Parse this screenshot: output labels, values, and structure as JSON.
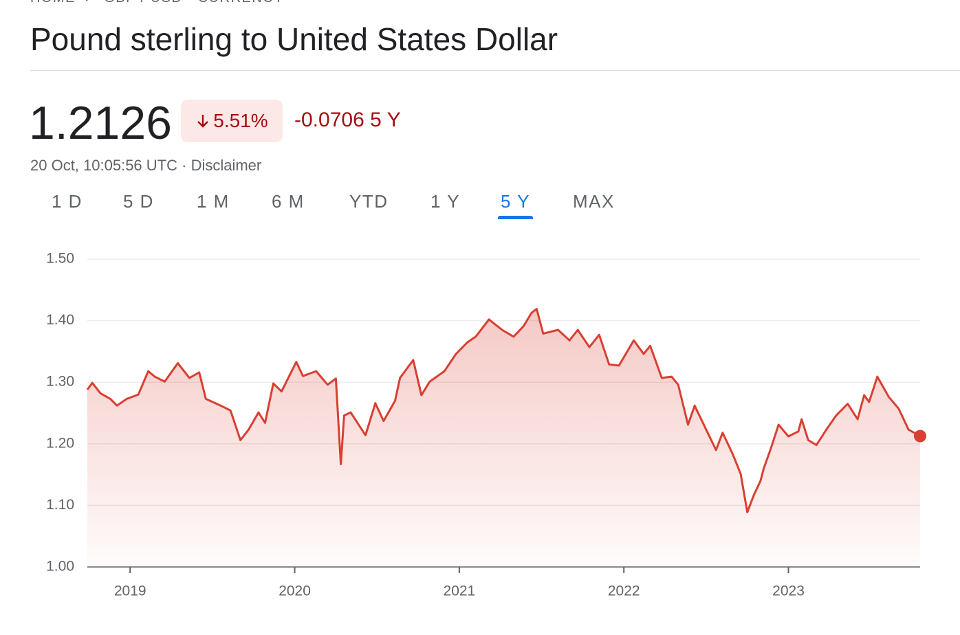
{
  "header": {
    "breadcrumb": [
      "HOME",
      "GBP / USD · CURRENCY"
    ],
    "title": "Pound sterling to United States Dollar"
  },
  "quote": {
    "price": "1.2126",
    "change_percent": "5.51%",
    "change": "-0.0706",
    "period": "5 Y",
    "timestamp": "20 Oct, 10:05:56 UTC",
    "disclaimer": "Disclaimer"
  },
  "tabs": {
    "items": [
      "1 D",
      "5 D",
      "1 M",
      "6 M",
      "YTD",
      "1 Y",
      "5 Y",
      "MAX"
    ],
    "active": 6
  },
  "chart_data": {
    "type": "line",
    "x": [
      2018.74,
      2018.77,
      2018.82,
      2018.88,
      2018.92,
      2018.98,
      2019.05,
      2019.11,
      2019.15,
      2019.21,
      2019.29,
      2019.36,
      2019.42,
      2019.46,
      2019.55,
      2019.61,
      2019.67,
      2019.72,
      2019.78,
      2019.82,
      2019.87,
      2019.92,
      2020.01,
      2020.05,
      2020.13,
      2020.2,
      2020.25,
      2020.28,
      2020.3,
      2020.34,
      2020.43,
      2020.49,
      2020.54,
      2020.61,
      2020.64,
      2020.72,
      2020.77,
      2020.82,
      2020.91,
      2020.98,
      2021.05,
      2021.1,
      2021.18,
      2021.26,
      2021.33,
      2021.39,
      2021.44,
      2021.47,
      2021.51,
      2021.6,
      2021.67,
      2021.72,
      2021.79,
      2021.85,
      2021.91,
      2021.97,
      2022.06,
      2022.12,
      2022.16,
      2022.23,
      2022.29,
      2022.33,
      2022.39,
      2022.43,
      2022.5,
      2022.56,
      2022.6,
      2022.66,
      2022.71,
      2022.75,
      2022.79,
      2022.83,
      2022.85,
      2022.89,
      2022.94,
      2023.0,
      2023.06,
      2023.08,
      2023.12,
      2023.17,
      2023.23,
      2023.29,
      2023.36,
      2023.42,
      2023.46,
      2023.49,
      2023.54,
      2023.61,
      2023.67,
      2023.73,
      2023.8
    ],
    "series": [
      {
        "name": "GBP / USD",
        "color": "#d93f32",
        "values": [
          1.288,
          1.299,
          1.282,
          1.273,
          1.262,
          1.273,
          1.28,
          1.318,
          1.309,
          1.301,
          1.331,
          1.307,
          1.316,
          1.273,
          1.262,
          1.254,
          1.206,
          1.223,
          1.251,
          1.234,
          1.298,
          1.285,
          1.333,
          1.31,
          1.318,
          1.296,
          1.306,
          1.167,
          1.246,
          1.251,
          1.214,
          1.266,
          1.237,
          1.27,
          1.307,
          1.336,
          1.279,
          1.301,
          1.318,
          1.346,
          1.365,
          1.374,
          1.402,
          1.385,
          1.374,
          1.391,
          1.413,
          1.419,
          1.379,
          1.385,
          1.368,
          1.385,
          1.357,
          1.377,
          1.329,
          1.327,
          1.368,
          1.346,
          1.359,
          1.307,
          1.309,
          1.296,
          1.231,
          1.262,
          1.223,
          1.19,
          1.218,
          1.184,
          1.151,
          1.089,
          1.117,
          1.14,
          1.16,
          1.19,
          1.231,
          1.212,
          1.22,
          1.24,
          1.206,
          1.198,
          1.223,
          1.246,
          1.265,
          1.24,
          1.279,
          1.268,
          1.309,
          1.276,
          1.257,
          1.223,
          1.2126
        ]
      }
    ],
    "xlim": [
      2018.74,
      2023.8
    ],
    "xticks": [
      2019,
      2020,
      2021,
      2022,
      2023
    ],
    "ylim": [
      1.0,
      1.5
    ],
    "yticks": [
      {
        "value": 1.0,
        "label": "1.00"
      },
      {
        "value": 1.1,
        "label": "1.10"
      },
      {
        "value": 1.2,
        "label": "1.20"
      },
      {
        "value": 1.3,
        "label": "1.30"
      },
      {
        "value": 1.4,
        "label": "1.40"
      },
      {
        "value": 1.5,
        "label": "1.50"
      }
    ],
    "grid": true
  }
}
